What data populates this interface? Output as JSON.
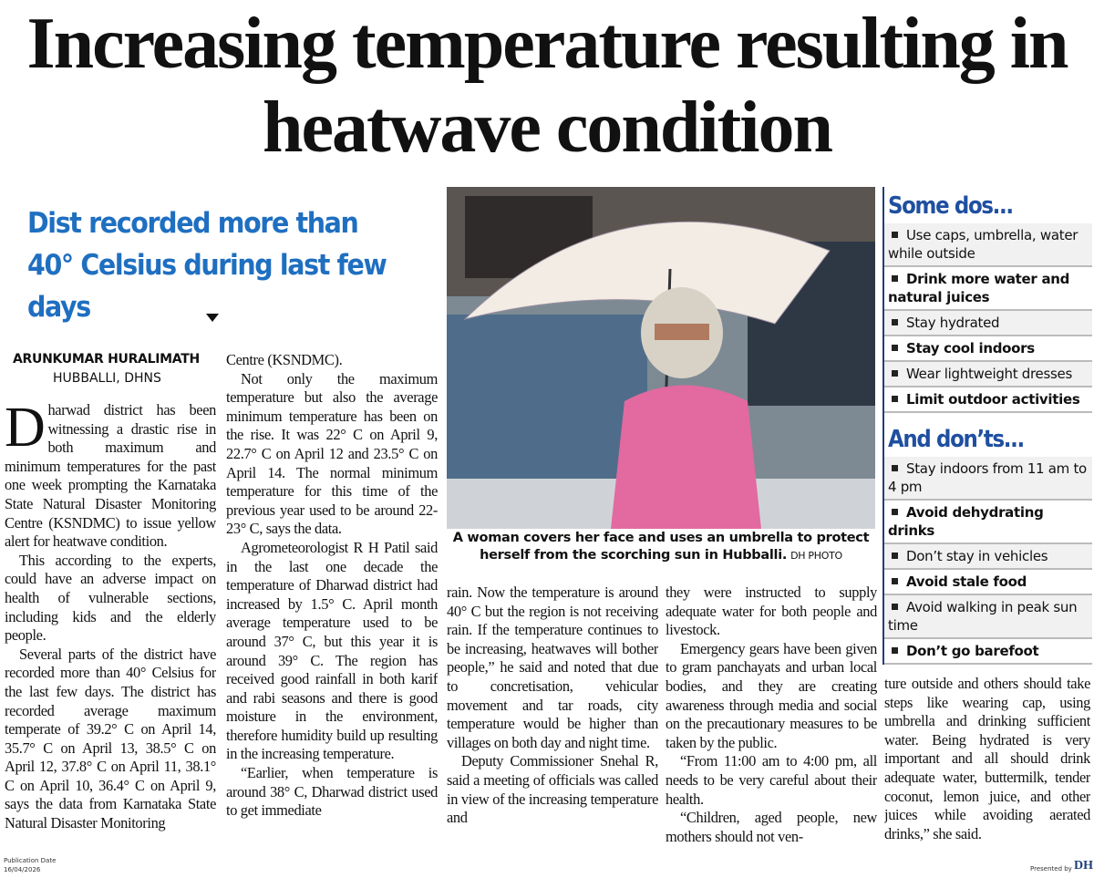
{
  "headline": "Increasing temperature resulting in heatwave condition",
  "subheadline": "Dist recorded more than 40° Celsius during last few days",
  "byline": {
    "author": "ARUNKUMAR HURALIMATH",
    "location": "HUBBALLI, DHNS"
  },
  "columns": [
    [
      "Dharwad district has been witnessing a drastic rise in both maximum and minimum temperatures for the past one week prompting the Karnataka State Natural Disaster Monitoring Centre (KSNDMC) to issue yellow alert for heatwave condition.",
      "This according to the experts, could have an adverse impact on health of vulnerable sections, including kids and the elderly people.",
      "Several parts of the district have recorded more than 40° Celsius for the last few days. The district has recorded average maximum temperate of 39.2° C on April 14, 35.7° C on April 13, 38.5° C on April 12, 37.8° C on April 11, 38.1° C on April 10, 36.4° C on April 9, says the data from Karnataka State Natural Disaster Monitoring"
    ],
    [
      "Centre (KSNDMC).",
      "Not only the maximum temperature but also the average minimum temperature has been on the rise. It was 22° C on April 9, 22.7° C on April 12 and 23.5° C on April 14. The normal minimum temperature for this time of the previous year used to be around 22-23° C, says the data.",
      "Agrometeorologist R H Patil said in the last one decade the temperature of Dharwad district had increased by 1.5° C. April month average temperature used to be around 37° C, but this year it is around 39° C. The region has received good rainfall in both karif and rabi seasons and there is good moisture in the environment, therefore humidity build up resulting in the increasing temperature.",
      "“Earlier, when temperature is around 38° C, Dharwad district used to get immediate"
    ],
    [
      "rain. Now the temperature is around 40° C but the region is not receiving rain. If the temperature continues to be increasing, heatwaves will bother people,” he said and noted that due to concretisation, vehicular movement and tar roads, city temperature would be higher than villages on both day and night time.",
      "Deputy Commissioner Snehal R, said a meeting of officials was called in view of the increasing temperature and"
    ],
    [
      "they were instructed to supply adequate water for both people and livestock.",
      "Emergency gears have been given to gram panchayats and urban local bodies, and they are creating awareness through media and social on the precautionary measures to be taken by the public.",
      "“From 11:00 am to 4:00 pm, all needs to be very careful about their health.",
      "“Children, aged people, new mothers should not ven-"
    ],
    [
      "ture outside and others should take steps like wearing cap, using umbrella and drinking sufficient water. Being hydrated is very important and all should drink adequate water, buttermilk, tender coconut, lemon juice, and other juices while avoiding aerated drinks,” she said."
    ]
  ],
  "photo": {
    "caption": "A woman covers her face and uses an umbrella to protect herself from the scorching sun in Hubballi.",
    "credit": "DH PHOTO"
  },
  "sidebar": {
    "dos_title": "Some dos...",
    "dos": [
      "Use caps, umbrella, water while outside",
      "Drink more water and natural juices",
      "Stay hydrated",
      "Stay cool indoors",
      "Wear lightweight dresses",
      "Limit outdoor activities"
    ],
    "donts_title": "And don’ts...",
    "donts": [
      "Stay indoors from 11 am to 4 pm",
      "Avoid dehydrating drinks",
      "Don’t stay in vehicles",
      "Avoid stale food",
      "Avoid walking in peak sun time",
      "Don’t go barefoot"
    ]
  },
  "footer": {
    "publication_label": "Publication Date",
    "publication_date": "16/04/2026",
    "presented_by": "Presented by",
    "logo": "DH"
  }
}
